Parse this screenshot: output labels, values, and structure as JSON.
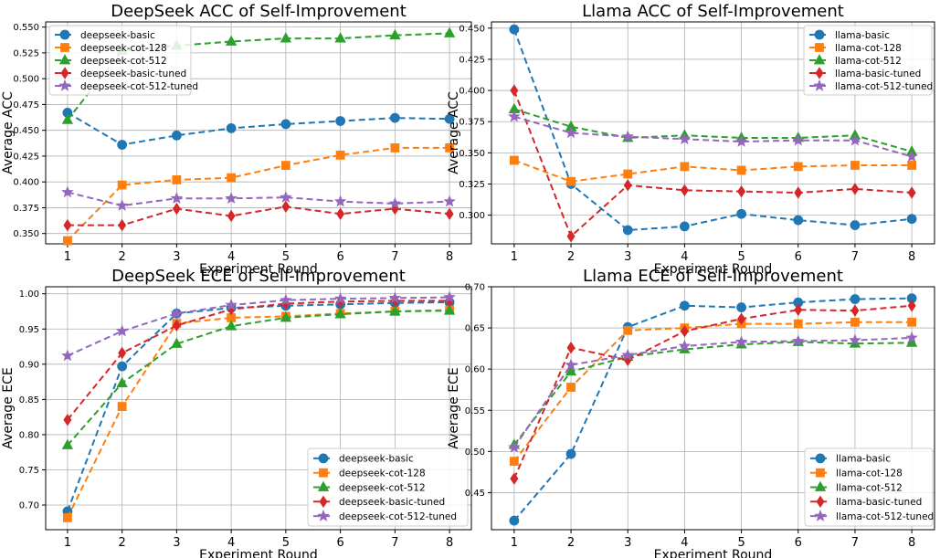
{
  "chart_data": [
    {
      "type": "line",
      "title": "DeepSeek ACC of Self-Improvement",
      "xlabel": "Experiment Round",
      "ylabel": "Average ACC",
      "x": [
        1,
        2,
        3,
        4,
        5,
        6,
        7,
        8
      ],
      "ylim": [
        0.34,
        0.555
      ],
      "yticks": [
        0.35,
        0.375,
        0.4,
        0.425,
        0.45,
        0.475,
        0.5,
        0.525,
        0.55
      ],
      "ytick_labels": [
        "0.350",
        "0.375",
        "0.400",
        "0.425",
        "0.450",
        "0.475",
        "0.500",
        "0.525",
        "0.550"
      ],
      "legend_position": "upper-left",
      "grid": true,
      "series": [
        {
          "name": "deepseek-basic",
          "values": [
            0.467,
            0.436,
            0.445,
            0.452,
            0.456,
            0.459,
            0.462,
            0.461
          ]
        },
        {
          "name": "deepseek-cot-128",
          "values": [
            0.343,
            0.397,
            0.402,
            0.404,
            0.416,
            0.426,
            0.433,
            0.433
          ]
        },
        {
          "name": "deepseek-cot-512",
          "values": [
            0.46,
            0.527,
            0.532,
            0.536,
            0.539,
            0.539,
            0.542,
            0.544
          ]
        },
        {
          "name": "deepseek-basic-tuned",
          "values": [
            0.358,
            0.358,
            0.374,
            0.367,
            0.376,
            0.369,
            0.374,
            0.369
          ]
        },
        {
          "name": "deepseek-cot-512-tuned",
          "values": [
            0.39,
            0.377,
            0.384,
            0.384,
            0.385,
            0.381,
            0.379,
            0.381
          ]
        }
      ]
    },
    {
      "type": "line",
      "title": "Llama ACC of Self-Improvement",
      "xlabel": "Experiment Round",
      "ylabel": "Average ACC",
      "x": [
        1,
        2,
        3,
        4,
        5,
        6,
        7,
        8
      ],
      "ylim": [
        0.277,
        0.455
      ],
      "yticks": [
        0.3,
        0.325,
        0.35,
        0.375,
        0.4,
        0.425,
        0.45
      ],
      "ytick_labels": [
        "0.300",
        "0.325",
        "0.350",
        "0.375",
        "0.400",
        "0.425",
        "0.450"
      ],
      "legend_position": "upper-right",
      "grid": true,
      "series": [
        {
          "name": "llama-basic",
          "values": [
            0.449,
            0.325,
            0.288,
            0.291,
            0.301,
            0.296,
            0.292,
            0.297
          ]
        },
        {
          "name": "llama-cot-128",
          "values": [
            0.344,
            0.327,
            0.333,
            0.339,
            0.336,
            0.339,
            0.34,
            0.34
          ]
        },
        {
          "name": "llama-cot-512",
          "values": [
            0.385,
            0.371,
            0.362,
            0.364,
            0.362,
            0.362,
            0.364,
            0.351
          ]
        },
        {
          "name": "llama-basic-tuned",
          "values": [
            0.4,
            0.283,
            0.324,
            0.32,
            0.319,
            0.318,
            0.321,
            0.318
          ]
        },
        {
          "name": "llama-cot-512-tuned",
          "values": [
            0.379,
            0.366,
            0.363,
            0.361,
            0.359,
            0.36,
            0.36,
            0.347
          ]
        }
      ]
    },
    {
      "type": "line",
      "title": "DeepSeek ECE of Self-Improvement",
      "xlabel": "Experiment Round",
      "ylabel": "Average ECE",
      "x": [
        1,
        2,
        3,
        4,
        5,
        6,
        7,
        8
      ],
      "ylim": [
        0.665,
        1.01
      ],
      "yticks": [
        0.7,
        0.75,
        0.8,
        0.85,
        0.9,
        0.95,
        1.0
      ],
      "ytick_labels": [
        "0.70",
        "0.75",
        "0.80",
        "0.85",
        "0.90",
        "0.95",
        "1.00"
      ],
      "legend_position": "lower-right",
      "grid": true,
      "series": [
        {
          "name": "deepseek-basic",
          "values": [
            0.691,
            0.897,
            0.972,
            0.98,
            0.983,
            0.985,
            0.987,
            0.988
          ]
        },
        {
          "name": "deepseek-cot-128",
          "values": [
            0.682,
            0.84,
            0.958,
            0.966,
            0.968,
            0.972,
            0.975,
            0.977
          ]
        },
        {
          "name": "deepseek-cot-512",
          "values": [
            0.785,
            0.873,
            0.929,
            0.954,
            0.966,
            0.971,
            0.975,
            0.976
          ]
        },
        {
          "name": "deepseek-basic-tuned",
          "values": [
            0.821,
            0.916,
            0.955,
            0.978,
            0.986,
            0.989,
            0.99,
            0.99
          ]
        },
        {
          "name": "deepseek-cot-512-tuned",
          "values": [
            0.912,
            0.947,
            0.972,
            0.984,
            0.991,
            0.993,
            0.994,
            0.995
          ]
        }
      ]
    },
    {
      "type": "line",
      "title": "Llama ECE of Self-Improvement",
      "xlabel": "Experiment Round",
      "ylabel": "Average ECE",
      "x": [
        1,
        2,
        3,
        4,
        5,
        6,
        7,
        8
      ],
      "ylim": [
        0.405,
        0.7
      ],
      "yticks": [
        0.45,
        0.5,
        0.55,
        0.6,
        0.65,
        0.7
      ],
      "ytick_labels": [
        "0.45",
        "0.50",
        "0.55",
        "0.60",
        "0.65",
        "0.70"
      ],
      "legend_position": "lower-right",
      "grid": true,
      "series": [
        {
          "name": "llama-basic",
          "values": [
            0.416,
            0.497,
            0.651,
            0.677,
            0.675,
            0.681,
            0.685,
            0.686
          ]
        },
        {
          "name": "llama-cot-128",
          "values": [
            0.488,
            0.578,
            0.647,
            0.65,
            0.655,
            0.655,
            0.657,
            0.657
          ]
        },
        {
          "name": "llama-cot-512",
          "values": [
            0.508,
            0.597,
            0.615,
            0.624,
            0.63,
            0.633,
            0.631,
            0.632
          ]
        },
        {
          "name": "llama-basic-tuned",
          "values": [
            0.467,
            0.626,
            0.611,
            0.646,
            0.661,
            0.672,
            0.671,
            0.677
          ]
        },
        {
          "name": "llama-cot-512-tuned",
          "values": [
            0.505,
            0.605,
            0.617,
            0.628,
            0.633,
            0.634,
            0.635,
            0.638
          ]
        }
      ]
    }
  ],
  "series_styles": [
    {
      "color": "#1f77b4",
      "marker": "circle-marker"
    },
    {
      "color": "#ff7f0e",
      "marker": "square-marker"
    },
    {
      "color": "#2ca02c",
      "marker": "triangle-marker"
    },
    {
      "color": "#d62728",
      "marker": "diamond-marker"
    },
    {
      "color": "#9467bd",
      "marker": "star-marker"
    }
  ],
  "grid_color": "#b0b0b0"
}
